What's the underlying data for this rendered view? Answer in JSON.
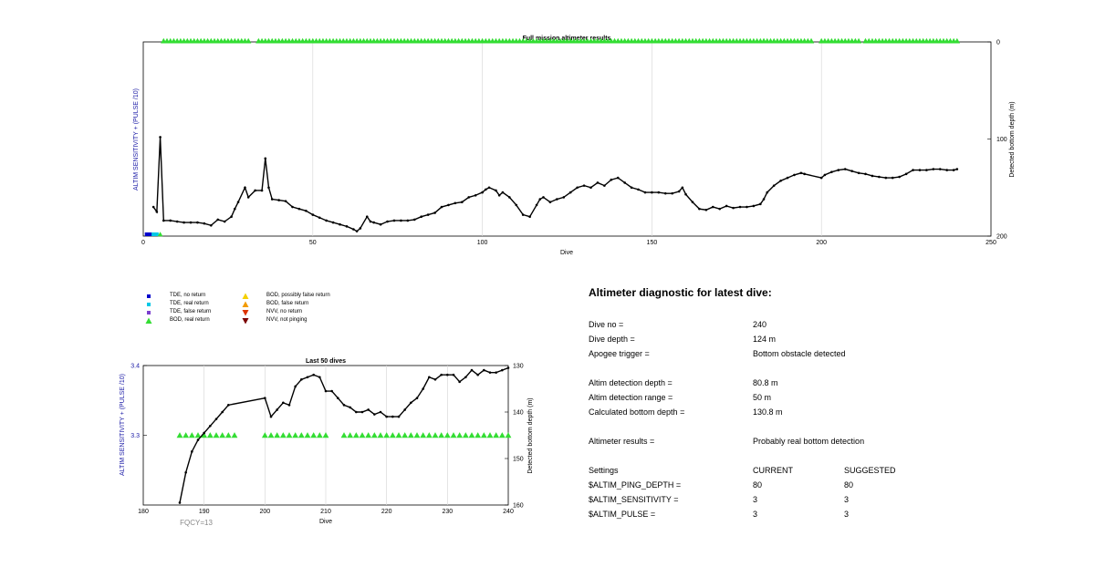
{
  "top_chart": {
    "title": "Full mission altimeter results",
    "xlabel": "Dive",
    "ylabel_left": "ALTIM SENSITIVITY + (PULSE /10)",
    "ylabel_right": "Detected bottom depth (m)",
    "xticks": [
      "0",
      "50",
      "100",
      "150",
      "200",
      "250"
    ],
    "yticks_right": [
      "0",
      "100",
      "200"
    ]
  },
  "bottom_chart": {
    "title": "Last 50 dives",
    "xlabel": "Dive",
    "ylabel_left": "ALTIM SENSITIVITY + (PULSE /10)",
    "ylabel_right": "Detected bottom depth (m)",
    "xticks": [
      "180",
      "190",
      "200",
      "210",
      "220",
      "230",
      "240"
    ],
    "yticks_left": [
      "3.4",
      "3.3"
    ],
    "yticks_right": [
      "130",
      "140",
      "150",
      "160"
    ],
    "footnote": "FQCY=13"
  },
  "legend": [
    {
      "label": "TDE, no return",
      "color": "#0000cc",
      "shape": "square"
    },
    {
      "label": "TDE, real return",
      "color": "#00c8e6",
      "shape": "square"
    },
    {
      "label": "TDE, false return",
      "color": "#7b3fcf",
      "shape": "square"
    },
    {
      "label": "BOD, real return",
      "color": "#33dd33",
      "shape": "triangle-up"
    },
    {
      "label": "BOD, possibly false return",
      "color": "#f5d000",
      "shape": "triangle-up"
    },
    {
      "label": "BOD, false return",
      "color": "#f29b00",
      "shape": "triangle-up"
    },
    {
      "label": "NVV, no return",
      "color": "#dd3300",
      "shape": "triangle-down"
    },
    {
      "label": "NVV, not pinging",
      "color": "#7a0000",
      "shape": "triangle-down"
    }
  ],
  "diagnostic": {
    "title": "Altimeter diagnostic for latest dive:",
    "dive_no_label": "Dive no =",
    "dive_no": "240",
    "dive_depth_label": "Dive depth =",
    "dive_depth": "124 m",
    "apogee_label": "Apogee trigger =",
    "apogee": "Bottom obstacle detected",
    "det_depth_label": "Altim detection depth =",
    "det_depth": "80.8 m",
    "det_range_label": "Altim detection range =",
    "det_range": "50 m",
    "calc_depth_label": "Calculated bottom depth =",
    "calc_depth": "130.8 m",
    "results_label": "Altimeter results =",
    "results": "Probably real bottom detection",
    "settings_label": "Settings",
    "current_label": "CURRENT",
    "suggested_label": "SUGGESTED",
    "ping_label": "$ALTIM_PING_DEPTH =",
    "ping_current": "80",
    "ping_suggested": "80",
    "sens_label": "$ALTIM_SENSITIVITY =",
    "sens_current": "3",
    "sens_suggested": "3",
    "pulse_label": "$ALTIM_PULSE =",
    "pulse_current": "3",
    "pulse_suggested": "3"
  },
  "chart_data": [
    {
      "type": "line",
      "title": "Full mission altimeter results",
      "xlabel": "Dive",
      "ylabel": "Detected bottom depth (m)",
      "xlim": [
        0,
        250
      ],
      "ylim_right": [
        0,
        200
      ],
      "y_reversed": true,
      "grid": "vertical",
      "series": [
        {
          "kind": "bottom_depth_line",
          "color": "#000000",
          "x": [
            3,
            4,
            5,
            6,
            8,
            10,
            12,
            14,
            16,
            18,
            20,
            22,
            24,
            26,
            27,
            28,
            30,
            31,
            33,
            35,
            36,
            37,
            38,
            40,
            42,
            44,
            46,
            48,
            50,
            52,
            54,
            56,
            58,
            60,
            62,
            63,
            64,
            66,
            67,
            68,
            70,
            72,
            74,
            76,
            78,
            80,
            82,
            84,
            86,
            88,
            90,
            92,
            94,
            96,
            98,
            100,
            101,
            102,
            104,
            105,
            106,
            108,
            110,
            112,
            114,
            116,
            117,
            118,
            120,
            122,
            124,
            126,
            128,
            130,
            132,
            134,
            136,
            138,
            140,
            142,
            144,
            146,
            148,
            150,
            152,
            154,
            156,
            158,
            159,
            160,
            162,
            164,
            166,
            168,
            170,
            172,
            174,
            176,
            178,
            180,
            182,
            183,
            184,
            186,
            188,
            190,
            192,
            194,
            195,
            200,
            201,
            203,
            205,
            207,
            209,
            211,
            213,
            215,
            217,
            219,
            221,
            223,
            225,
            227,
            229,
            231,
            233,
            235,
            237,
            239,
            240
          ],
          "y": [
            170,
            175,
            98,
            184,
            184,
            185,
            186,
            186,
            186,
            187,
            189,
            183,
            185,
            180,
            172,
            165,
            150,
            160,
            153,
            153,
            120,
            150,
            162,
            163,
            164,
            170,
            172,
            174,
            178,
            181,
            184,
            186,
            188,
            190,
            193,
            195,
            192,
            180,
            185,
            186,
            188,
            185,
            184,
            184,
            184,
            183,
            180,
            178,
            176,
            170,
            168,
            166,
            165,
            160,
            158,
            155,
            152,
            150,
            153,
            158,
            155,
            160,
            168,
            178,
            180,
            168,
            162,
            160,
            165,
            162,
            160,
            155,
            150,
            148,
            150,
            145,
            148,
            142,
            140,
            145,
            150,
            152,
            155,
            155,
            155,
            156,
            156,
            154,
            150,
            157,
            165,
            172,
            173,
            170,
            172,
            169,
            171,
            170,
            170,
            169,
            167,
            162,
            155,
            148,
            143,
            140,
            137,
            135,
            136,
            140,
            137,
            134,
            132,
            131,
            133,
            135,
            136,
            138,
            139,
            140,
            140,
            139,
            136,
            132,
            132,
            132,
            131,
            131,
            132,
            132,
            131
          ]
        },
        {
          "kind": "BOD, real return (depth 0)",
          "color": "#33dd33",
          "ranges": [
            [
              6,
              31
            ],
            [
              34,
              41
            ],
            [
              42,
              106
            ],
            [
              107,
              183
            ],
            [
              183,
              197
            ],
            [
              200,
              211
            ],
            [
              213,
              240
            ]
          ]
        },
        {
          "kind": "TDE markers at bottom",
          "x": [
            1,
            2,
            3,
            4,
            5
          ],
          "colors": [
            "#0000cc",
            "#0000cc",
            "#00c8e6",
            "#00c8e6",
            "#33dd33"
          ]
        }
      ]
    },
    {
      "type": "line",
      "title": "Last 50 dives",
      "xlabel": "Dive",
      "ylabel": "Detected bottom depth (m)",
      "xlim": [
        180,
        240
      ],
      "ylim_left": [
        3.3,
        3.4
      ],
      "ylim_right": [
        130,
        160
      ],
      "y_reversed": true,
      "grid": "vertical",
      "series": [
        {
          "kind": "bottom_depth_line",
          "color": "#000000",
          "x": [
            186,
            187,
            188,
            189,
            190,
            191,
            192,
            193,
            194,
            200,
            201,
            202,
            203,
            204,
            205,
            206,
            207,
            208,
            209,
            210,
            211,
            212,
            213,
            214,
            215,
            216,
            217,
            218,
            219,
            220,
            221,
            222,
            223,
            224,
            225,
            226,
            227,
            228,
            229,
            230,
            231,
            232,
            233,
            234,
            235,
            236,
            237,
            238,
            239,
            240
          ],
          "y": [
            159.5,
            153,
            148.5,
            146,
            144.5,
            143,
            141.5,
            140,
            138.5,
            137,
            141,
            139.5,
            138,
            138.5,
            134.5,
            133,
            132.5,
            132,
            132.5,
            135.5,
            135.5,
            137,
            138.5,
            139,
            140,
            140,
            139.5,
            140.5,
            140,
            141,
            141,
            141,
            139.5,
            138,
            137,
            135,
            132.5,
            133,
            132,
            132,
            132,
            133.5,
            132.5,
            131,
            132,
            131,
            131.5,
            131.5,
            131,
            130.5
          ]
        },
        {
          "kind": "BOD, real return (sensitivity 3.3)",
          "color": "#33dd33",
          "x": [
            186,
            187,
            188,
            189,
            190,
            191,
            192,
            193,
            194,
            195,
            200,
            201,
            202,
            203,
            204,
            205,
            206,
            207,
            208,
            209,
            210,
            213,
            214,
            215,
            216,
            217,
            218,
            219,
            220,
            221,
            222,
            223,
            224,
            225,
            226,
            227,
            228,
            229,
            230,
            231,
            232,
            233,
            234,
            235,
            236,
            237,
            238,
            239,
            240
          ]
        }
      ]
    }
  ]
}
